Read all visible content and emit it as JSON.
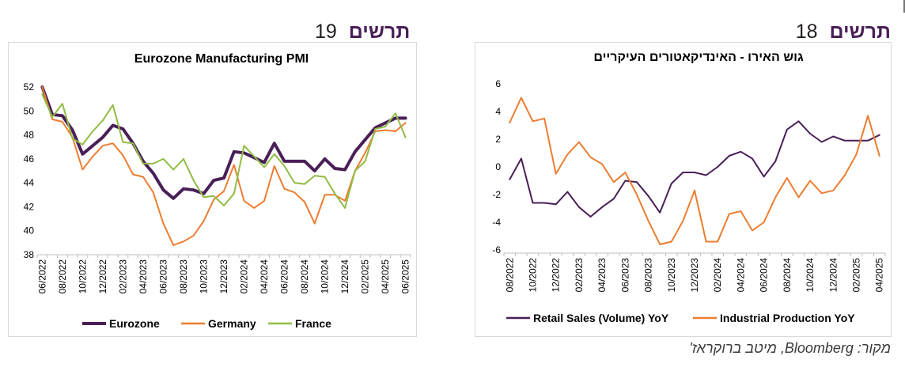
{
  "headings": {
    "right": {
      "word": "תרשים",
      "number": "18"
    },
    "left": {
      "word": "תרשים",
      "number": "19"
    }
  },
  "source": "מקור: Bloomberg, מיטב ברוקראז'",
  "chart_data": [
    {
      "type": "line",
      "title": "Eurozone Manufacturing PMI",
      "xlabel": "",
      "ylabel": "",
      "ylim": [
        38,
        52
      ],
      "yticks": [
        38,
        40,
        42,
        44,
        46,
        48,
        50,
        52
      ],
      "grid": false,
      "legend": "bottom",
      "x": [
        "06/2022",
        "07/2022",
        "08/2022",
        "09/2022",
        "10/2022",
        "11/2022",
        "12/2022",
        "01/2023",
        "02/2023",
        "03/2023",
        "04/2023",
        "05/2023",
        "06/2023",
        "07/2023",
        "08/2023",
        "09/2023",
        "10/2023",
        "11/2023",
        "12/2023",
        "01/2024",
        "02/2024",
        "03/2024",
        "04/2024",
        "05/2024",
        "06/2024",
        "07/2024",
        "08/2024",
        "09/2024",
        "10/2024",
        "11/2024",
        "12/2024",
        "01/2025",
        "02/2025",
        "03/2025",
        "04/2025",
        "05/2025",
        "06/2025"
      ],
      "xtick_labels": [
        "06/2022",
        "08/2022",
        "10/2022",
        "12/2022",
        "02/2023",
        "04/2023",
        "06/2023",
        "08/2023",
        "10/2023",
        "12/2023",
        "02/2024",
        "04/2024",
        "06/2024",
        "08/2024",
        "10/2024",
        "12/2024",
        "02/2025",
        "04/2025",
        "06/2025"
      ],
      "series": [
        {
          "name": "Eurozone",
          "color": "#4a1f57",
          "width": 4,
          "values": [
            52.0,
            49.7,
            49.6,
            48.4,
            46.4,
            47.1,
            47.8,
            48.8,
            48.5,
            47.3,
            45.8,
            44.8,
            43.4,
            42.7,
            43.5,
            43.4,
            43.1,
            44.2,
            44.4,
            46.6,
            46.5,
            46.1,
            45.7,
            47.3,
            45.8,
            45.8,
            45.8,
            45.0,
            46.0,
            45.2,
            45.1,
            46.6,
            47.6,
            48.6,
            49.0,
            49.4,
            49.4
          ]
        },
        {
          "name": "Germany",
          "color": "#ed7d31",
          "width": 2,
          "values": [
            52.0,
            49.3,
            49.1,
            47.8,
            45.1,
            46.2,
            47.1,
            47.3,
            46.3,
            44.7,
            44.5,
            43.2,
            40.6,
            38.8,
            39.1,
            39.6,
            40.8,
            42.6,
            43.3,
            45.5,
            42.5,
            41.9,
            42.5,
            45.4,
            43.5,
            43.2,
            42.4,
            40.6,
            43.0,
            43.0,
            42.5,
            45.0,
            46.5,
            48.3,
            48.4,
            48.3,
            49.0
          ]
        },
        {
          "name": "France",
          "color": "#8fbc45",
          "width": 2,
          "values": [
            51.4,
            49.5,
            50.6,
            47.7,
            47.2,
            48.3,
            49.2,
            50.5,
            47.4,
            47.3,
            45.6,
            45.6,
            46.0,
            45.1,
            46.0,
            44.2,
            42.8,
            42.9,
            42.1,
            43.1,
            47.1,
            46.2,
            45.3,
            46.4,
            45.4,
            44.0,
            43.9,
            44.6,
            44.5,
            43.1,
            41.9,
            45.0,
            45.8,
            48.5,
            48.7,
            49.8,
            47.8
          ]
        }
      ]
    },
    {
      "type": "line",
      "title": "גוש האירו - האינדיקאטורים העיקריים",
      "xlabel": "",
      "ylabel": "",
      "ylim": [
        -6,
        6
      ],
      "yticks": [
        -6,
        -4,
        -2,
        0,
        2,
        4,
        6
      ],
      "grid": false,
      "legend": "bottom",
      "x": [
        "08/2022",
        "09/2022",
        "10/2022",
        "11/2022",
        "12/2022",
        "01/2023",
        "02/2023",
        "03/2023",
        "04/2023",
        "05/2023",
        "06/2023",
        "07/2023",
        "08/2023",
        "09/2023",
        "10/2023",
        "11/2023",
        "12/2023",
        "01/2024",
        "02/2024",
        "03/2024",
        "04/2024",
        "05/2024",
        "06/2024",
        "07/2024",
        "08/2024",
        "09/2024",
        "10/2024",
        "11/2024",
        "12/2024",
        "01/2025",
        "02/2025",
        "03/2025",
        "04/2025"
      ],
      "xtick_labels": [
        "08/2022",
        "10/2022",
        "12/2022",
        "02/2023",
        "04/2023",
        "06/2023",
        "08/2023",
        "10/2023",
        "12/2023",
        "02/2024",
        "04/2024",
        "06/2024",
        "08/2024",
        "10/2024",
        "12/2024",
        "02/2025",
        "04/2025"
      ],
      "series": [
        {
          "name": "Retail Sales (Volume) YoY",
          "color": "#4a1f57",
          "width": 2,
          "values": [
            -0.9,
            0.6,
            -2.6,
            -2.6,
            -2.7,
            -1.8,
            -2.9,
            -3.6,
            -2.9,
            -2.3,
            -1.0,
            -1.1,
            -2.1,
            -3.3,
            -1.2,
            -0.4,
            -0.4,
            -0.6,
            0.0,
            0.8,
            1.1,
            0.6,
            -0.7,
            0.4,
            2.7,
            3.3,
            2.4,
            1.8,
            2.2,
            1.9,
            1.9,
            1.9,
            2.3
          ]
        },
        {
          "name": "Industrial Production YoY",
          "color": "#ed7d31",
          "width": 2,
          "values": [
            3.2,
            5.0,
            3.3,
            3.5,
            -0.5,
            0.9,
            1.8,
            0.7,
            0.2,
            -1.1,
            -0.4,
            -2.0,
            -3.9,
            -5.6,
            -5.4,
            -3.9,
            -1.7,
            -5.4,
            -5.4,
            -3.4,
            -3.2,
            -4.6,
            -4.0,
            -2.2,
            -0.8,
            -2.2,
            -1.0,
            -1.9,
            -1.7,
            -0.6,
            0.9,
            3.7,
            0.8
          ]
        }
      ]
    }
  ]
}
